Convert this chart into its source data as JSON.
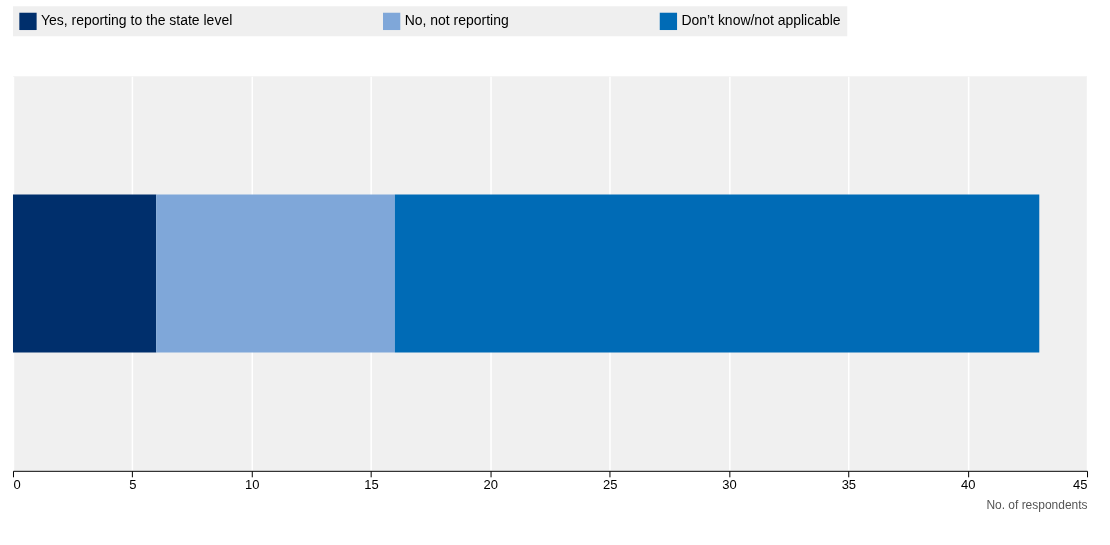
{
  "chart_data": {
    "type": "bar",
    "orientation": "horizontal",
    "stacked": true,
    "categories": [
      null
    ],
    "series": [
      {
        "name": "Yes, reporting to the state level",
        "color": "#002f6c",
        "values": [
          6
        ]
      },
      {
        "name": "No, not reporting",
        "color": "#7fa7d9",
        "values": [
          10
        ]
      },
      {
        "name": "Don’t know/not applicable",
        "color": "#006bb6",
        "values": [
          27
        ]
      }
    ],
    "xlim": [
      0,
      45
    ],
    "xticks": [
      0,
      5,
      10,
      15,
      20,
      25,
      30,
      35,
      40,
      45
    ],
    "xlabel": "No. of respondents",
    "grid": "x",
    "legend": "top",
    "tick_labels": "x"
  }
}
